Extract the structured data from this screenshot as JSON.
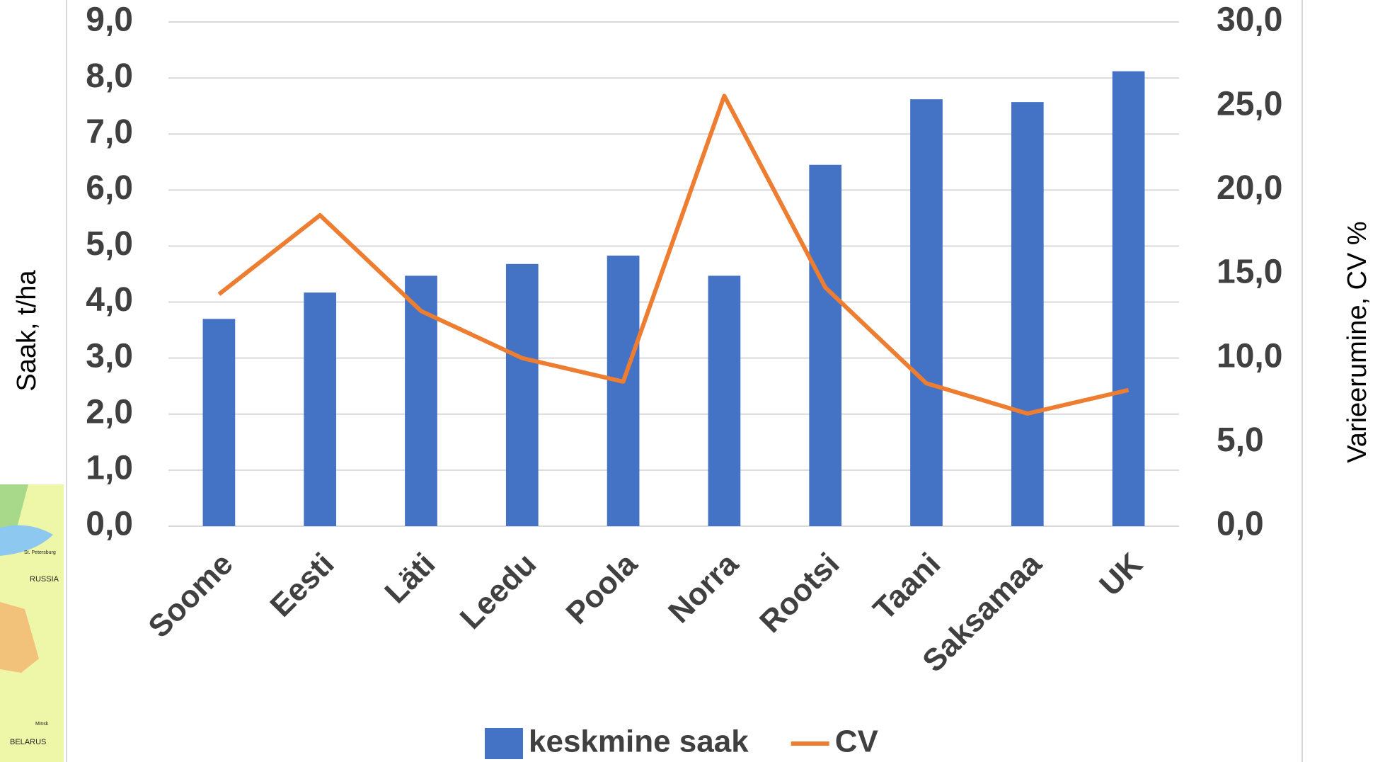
{
  "chart_data": {
    "type": "bar",
    "categories": [
      "Soome",
      "Eesti",
      "Läti",
      "Leedu",
      "Poola",
      "Norra",
      "Rootsi",
      "Taani",
      "Saksamaa",
      "UK"
    ],
    "series": [
      {
        "name": "keskmine saak",
        "type": "bar",
        "color": "#4472c4",
        "values": [
          3.7,
          4.17,
          4.47,
          4.68,
          4.83,
          4.47,
          6.45,
          7.62,
          7.57,
          8.12
        ]
      },
      {
        "name": "CV",
        "type": "line",
        "axis": "y2",
        "color": "#ed7d31",
        "values": [
          13.8,
          18.5,
          12.8,
          10.0,
          8.6,
          25.6,
          14.2,
          8.5,
          6.7,
          8.1
        ]
      }
    ],
    "y_label": "Saak, t/ha",
    "y2_label": "Varieerumine, CV %",
    "ylim": [
      0,
      9
    ],
    "yticks": [
      {
        "value": 0,
        "label": "0,0"
      },
      {
        "value": 1,
        "label": "1,0"
      },
      {
        "value": 2,
        "label": "2,0"
      },
      {
        "value": 3,
        "label": "3,0"
      },
      {
        "value": 4,
        "label": "4,0"
      },
      {
        "value": 5,
        "label": "5,0"
      },
      {
        "value": 6,
        "label": "6,0"
      },
      {
        "value": 7,
        "label": "7,0"
      },
      {
        "value": 8,
        "label": "8,0"
      },
      {
        "value": 9,
        "label": "9,0"
      }
    ],
    "y2lim": [
      0,
      30
    ],
    "y2ticks": [
      {
        "value": 0,
        "label": "0,0"
      },
      {
        "value": 5,
        "label": "5,0"
      },
      {
        "value": 10,
        "label": "10,0"
      },
      {
        "value": 15,
        "label": "15,0"
      },
      {
        "value": 20,
        "label": "20,0"
      },
      {
        "value": 25,
        "label": "25,0"
      },
      {
        "value": 30,
        "label": "30,0"
      }
    ],
    "grid": true,
    "legend": "bottom"
  },
  "map": {
    "labels": [
      "St. Petersburg",
      "RUSSIA",
      "Minsk",
      "BELARUS"
    ]
  }
}
